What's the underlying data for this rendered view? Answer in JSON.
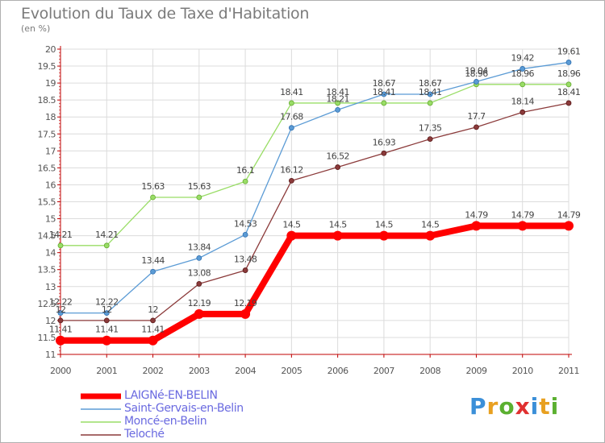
{
  "chart_data": {
    "type": "line",
    "title": "Evolution du Taux de Taxe d'Habitation",
    "ylabel": "(en %)",
    "categories": [
      "2000",
      "2001",
      "2002",
      "2003",
      "2004",
      "2005",
      "2006",
      "2007",
      "2008",
      "2009",
      "2010",
      "2011"
    ],
    "ylim": [
      11,
      20
    ],
    "yticks": [
      "11",
      "11.5",
      "12",
      "12.5",
      "13",
      "13.5",
      "14",
      "14.5",
      "15",
      "15.5",
      "16",
      "16.5",
      "17",
      "17.5",
      "18",
      "18.5",
      "19",
      "19.5",
      "20"
    ],
    "grid": true,
    "series": [
      {
        "name": "LAIGNé-EN-BELIN",
        "color": "#ff0000",
        "values": [
          11.41,
          11.41,
          11.41,
          12.19,
          12.19,
          14.5,
          14.5,
          14.5,
          14.5,
          14.79,
          14.79,
          14.79
        ],
        "labels": [
          "11.41",
          "11.41",
          "11.41",
          "12.19",
          "12.19",
          "14.5",
          "14.5",
          "14.5",
          "14.5",
          "14.79",
          "14.79",
          "14.79"
        ]
      },
      {
        "name": "Saint-Gervais-en-Belin",
        "color": "#5b9bd5",
        "values": [
          12.22,
          12.22,
          13.44,
          13.84,
          14.53,
          17.68,
          18.21,
          18.67,
          18.67,
          19.04,
          19.42,
          19.61
        ],
        "labels": [
          "12.22",
          "12.22",
          "13.44",
          "13.84",
          "14.53",
          "17.68",
          "18.21",
          "18.67",
          "18.67",
          "19.04",
          "19.42",
          "19.61"
        ]
      },
      {
        "name": "Moncé-en-Belin",
        "color": "#99dd66",
        "values": [
          14.21,
          14.21,
          15.63,
          15.63,
          16.1,
          18.41,
          18.41,
          18.41,
          18.41,
          18.96,
          18.96,
          18.96
        ],
        "labels": [
          "14.21",
          "14.21",
          "15.63",
          "15.63",
          "16.1",
          "18.41",
          "18.41",
          "18.41",
          "18.41",
          "18.96",
          "18.96",
          "18.96"
        ]
      },
      {
        "name": "Teloché",
        "color": "#8b3a3a",
        "values": [
          12,
          12,
          12,
          13.08,
          13.48,
          16.12,
          16.52,
          16.93,
          17.35,
          17.7,
          18.14,
          18.41
        ],
        "labels": [
          "12",
          "12",
          "12",
          "13.08",
          "13.48",
          "16.12",
          "16.52",
          "16.93",
          "17.35",
          "17.7",
          "18.14",
          "18.41"
        ]
      }
    ]
  },
  "logo": {
    "text": "Proxiti"
  }
}
